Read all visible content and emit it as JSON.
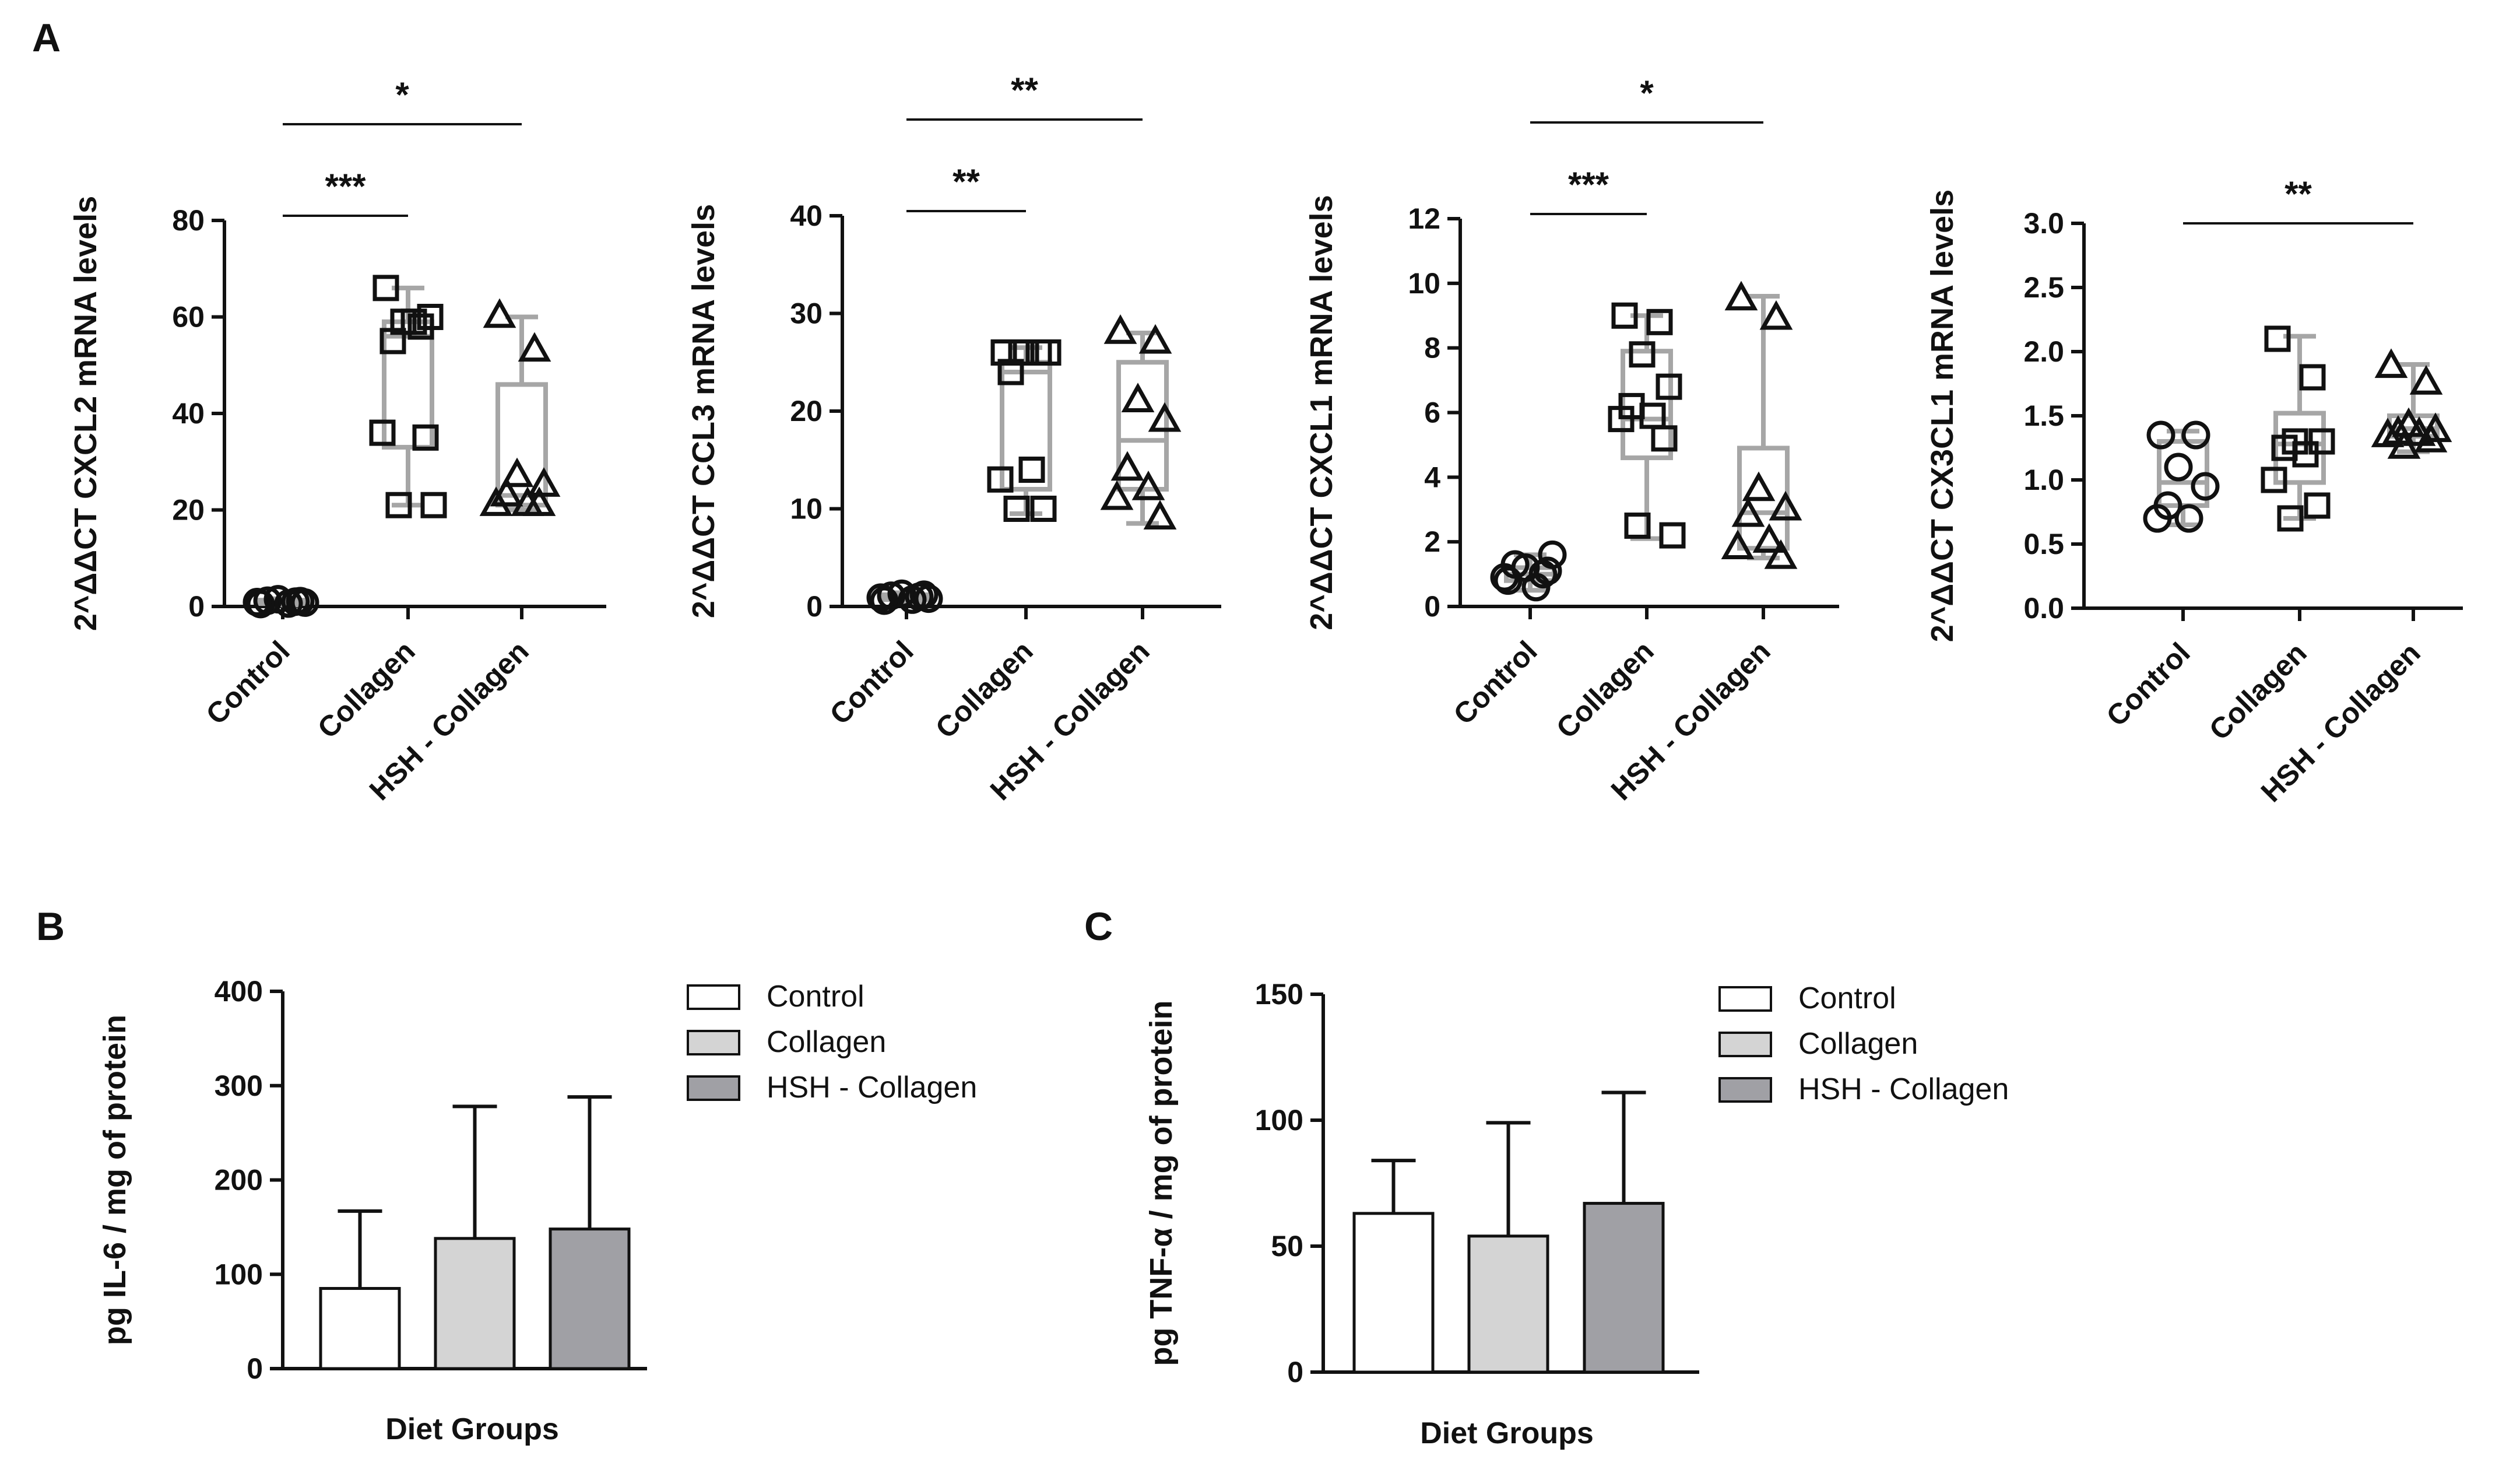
{
  "panel_labels": [
    "A",
    "B",
    "C"
  ],
  "chart_data": [
    {
      "panel": "A",
      "type": "scatter",
      "subtype": "box-and-whisker with points",
      "ylabel": "2^ΔΔCT CXCL2 mRNA levels",
      "ylim": [
        0,
        80
      ],
      "yticks": [
        0,
        20,
        40,
        60,
        80
      ],
      "categories": [
        "Control",
        "Collagen",
        "HSH - Collagen"
      ],
      "series": [
        {
          "name": "Control",
          "marker": "circle",
          "values": [
            0.5,
            1.0,
            1.5,
            0.8,
            1.2,
            0.6,
            0.9,
            1.1
          ],
          "box": {
            "min": 0.3,
            "q1": 0.6,
            "median": 1.0,
            "q3": 1.3,
            "max": 1.6
          }
        },
        {
          "name": "Collagen",
          "marker": "square",
          "values": [
            66,
            58,
            59,
            60,
            55,
            59,
            36,
            35,
            21,
            21
          ],
          "box": {
            "min": 21,
            "q1": 33,
            "median": 56,
            "q3": 59,
            "max": 66
          }
        },
        {
          "name": "HSH - Collagen",
          "marker": "triangle",
          "values": [
            60,
            53,
            27,
            25,
            23,
            21,
            21,
            21
          ],
          "box": {
            "min": 20,
            "q1": 21,
            "median": 23,
            "q3": 46,
            "max": 60
          }
        }
      ],
      "significance": [
        {
          "from": 0,
          "to": 1,
          "label": "***"
        },
        {
          "from": 0,
          "to": 2,
          "label": "*"
        }
      ]
    },
    {
      "panel": "A",
      "type": "scatter",
      "subtype": "box-and-whisker with points",
      "ylabel": "2^ΔΔCT CCL3 mRNA levels",
      "ylim": [
        0,
        40
      ],
      "yticks": [
        0,
        10,
        20,
        30,
        40
      ],
      "categories": [
        "Control",
        "Collagen",
        "HSH - Collagen"
      ],
      "series": [
        {
          "name": "Control",
          "marker": "circle",
          "values": [
            0.6,
            1.0,
            1.3,
            0.8,
            1.1,
            0.7,
            0.9,
            1.2
          ],
          "box": {
            "min": 0.4,
            "q1": 0.7,
            "median": 1.0,
            "q3": 1.2,
            "max": 1.4
          }
        },
        {
          "name": "Collagen",
          "marker": "square",
          "values": [
            26,
            26,
            26,
            26,
            24,
            14,
            13,
            10,
            10
          ],
          "box": {
            "min": 9.5,
            "q1": 12,
            "median": 24,
            "q3": 25,
            "max": 26.5
          }
        },
        {
          "name": "HSH - Collagen",
          "marker": "triangle",
          "values": [
            28,
            27,
            21,
            19,
            14,
            12,
            11,
            9
          ],
          "box": {
            "min": 8.5,
            "q1": 12,
            "median": 17,
            "q3": 25,
            "max": 28
          }
        }
      ],
      "significance": [
        {
          "from": 0,
          "to": 1,
          "label": "**"
        },
        {
          "from": 0,
          "to": 2,
          "label": "**"
        }
      ]
    },
    {
      "panel": "A",
      "type": "scatter",
      "subtype": "box-and-whisker with points",
      "ylabel": "2^ΔΔCT CXCL1 mRNA levels",
      "ylim": [
        0,
        12
      ],
      "yticks": [
        0,
        2,
        4,
        6,
        8,
        10,
        12
      ],
      "categories": [
        "Control",
        "Collagen",
        "HSH - Collagen"
      ],
      "series": [
        {
          "name": "Control",
          "marker": "circle",
          "values": [
            0.8,
            1.0,
            1.2,
            1.6,
            1.3,
            0.6,
            0.9,
            1.1
          ],
          "box": {
            "min": 0.5,
            "q1": 0.8,
            "median": 1.0,
            "q3": 1.2,
            "max": 1.6
          }
        },
        {
          "name": "Collagen",
          "marker": "square",
          "values": [
            9.0,
            8.8,
            7.8,
            6.8,
            6.2,
            5.9,
            5.8,
            5.2,
            2.5,
            2.2
          ],
          "box": {
            "min": 2.1,
            "q1": 4.6,
            "median": 5.8,
            "q3": 7.9,
            "max": 9.0
          }
        },
        {
          "name": "HSH - Collagen",
          "marker": "triangle",
          "values": [
            9.5,
            8.9,
            3.6,
            3.0,
            2.8,
            2.0,
            1.8,
            1.5
          ],
          "box": {
            "min": 1.5,
            "q1": 1.8,
            "median": 2.9,
            "q3": 4.9,
            "max": 9.6
          }
        }
      ],
      "significance": [
        {
          "from": 0,
          "to": 1,
          "label": "***"
        },
        {
          "from": 0,
          "to": 2,
          "label": "*"
        }
      ]
    },
    {
      "panel": "A",
      "type": "scatter",
      "subtype": "box-and-whisker with points",
      "ylabel": "2^ΔΔCT CX3CL1 mRNA levels",
      "ylim": [
        0,
        3.0
      ],
      "yticks": [
        "0.0",
        "0.5",
        "1.0",
        "1.5",
        "2.0",
        "2.5",
        "3.0"
      ],
      "categories": [
        "Control",
        "Collagen",
        "HSH - Collagen"
      ],
      "series": [
        {
          "name": "Control",
          "marker": "circle",
          "values": [
            1.35,
            1.35,
            1.1,
            0.95,
            0.8,
            0.7,
            0.7
          ],
          "box": {
            "min": 0.65,
            "q1": 0.8,
            "median": 0.98,
            "q3": 1.3,
            "max": 1.38
          }
        },
        {
          "name": "Collagen",
          "marker": "square",
          "values": [
            2.1,
            1.8,
            1.3,
            1.3,
            1.25,
            1.2,
            1.0,
            0.8,
            0.7
          ],
          "box": {
            "min": 0.7,
            "q1": 0.98,
            "median": 1.28,
            "q3": 1.52,
            "max": 2.12
          }
        },
        {
          "name": "HSH - Collagen",
          "marker": "triangle",
          "values": [
            1.88,
            1.75,
            1.42,
            1.38,
            1.36,
            1.35,
            1.34,
            1.3,
            1.25
          ],
          "box": {
            "min": 1.22,
            "q1": 1.34,
            "median": 1.4,
            "q3": 1.5,
            "max": 1.9
          }
        }
      ],
      "significance": [
        {
          "from": 0,
          "to": 2,
          "label": "**"
        }
      ]
    },
    {
      "panel": "B",
      "type": "bar",
      "ylabel": "pg IL-6 / mg of protein",
      "xlabel": "Diet Groups",
      "ylim": [
        0,
        400
      ],
      "yticks": [
        0,
        100,
        200,
        300,
        400
      ],
      "categories": [
        "Control",
        "Collagen",
        "HSH - Collagen"
      ],
      "values": [
        85,
        138,
        148
      ],
      "error_upper": [
        167,
        278,
        288
      ],
      "colors": [
        "#ffffff",
        "#d4d4d4",
        "#a0a0a5"
      ],
      "legend": [
        "Control",
        "Collagen",
        "HSH - Collagen"
      ],
      "legend_position": "right"
    },
    {
      "panel": "C",
      "type": "bar",
      "ylabel": "pg TNF-α / mg of protein",
      "xlabel": "Diet Groups",
      "ylim": [
        0,
        150
      ],
      "yticks": [
        0,
        50,
        100,
        150
      ],
      "categories": [
        "Control",
        "Collagen",
        "HSH - Collagen"
      ],
      "values": [
        63,
        54,
        67
      ],
      "error_upper": [
        84,
        99,
        111
      ],
      "colors": [
        "#ffffff",
        "#d4d4d4",
        "#a0a0a5"
      ],
      "legend": [
        "Control",
        "Collagen",
        "HSH - Collagen"
      ],
      "legend_position": "right"
    }
  ]
}
